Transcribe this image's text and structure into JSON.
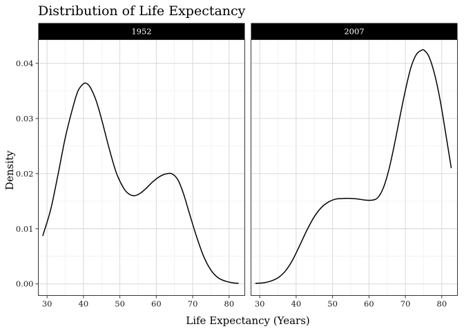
{
  "chart_data": {
    "type": "line",
    "title": "Distribution of Life Expectancy",
    "xlabel": "Life Expectancy (Years)",
    "ylabel": "Density",
    "xlim": [
      27.6,
      84.3
    ],
    "ylim": [
      -0.0021,
      0.0443
    ],
    "x_ticks": [
      30,
      40,
      50,
      60,
      70,
      80
    ],
    "y_ticks": [
      0.0,
      0.01,
      0.02,
      0.03,
      0.04
    ],
    "y_tick_labels": [
      "0.00",
      "0.01",
      "0.02",
      "0.03",
      "0.04"
    ],
    "grid": true,
    "legend": "none",
    "panels": [
      {
        "name": "1952",
        "x": [
          28.8,
          31,
          33,
          35,
          37,
          38.5,
          40,
          41,
          42,
          43.5,
          45,
          47,
          49,
          51,
          52.5,
          54,
          55.5,
          57,
          59,
          61,
          63,
          64.5,
          66,
          67.5,
          69,
          71,
          73,
          75,
          77,
          79,
          81,
          82.6
        ],
        "y": [
          0.0087,
          0.0135,
          0.0198,
          0.0265,
          0.0318,
          0.035,
          0.0363,
          0.0363,
          0.0355,
          0.0332,
          0.0298,
          0.0247,
          0.0202,
          0.0174,
          0.0163,
          0.016,
          0.0164,
          0.0172,
          0.0185,
          0.0195,
          0.02,
          0.0199,
          0.0188,
          0.0163,
          0.013,
          0.0087,
          0.005,
          0.0025,
          0.0011,
          0.0005,
          0.0002,
          0.0001
        ]
      },
      {
        "name": "2007",
        "x": [
          28.8,
          31,
          33,
          35,
          37,
          39,
          41,
          43,
          45,
          47,
          49,
          51,
          53,
          55,
          57,
          59,
          61,
          62.5,
          64,
          65.5,
          67,
          68.5,
          70,
          71.5,
          73,
          74.5,
          75.3,
          76.5,
          78,
          79.5,
          81,
          82.6
        ],
        "y": [
          0.0001,
          0.0002,
          0.0005,
          0.0011,
          0.0023,
          0.0043,
          0.007,
          0.0098,
          0.0122,
          0.0139,
          0.0149,
          0.0154,
          0.0155,
          0.0155,
          0.0154,
          0.0152,
          0.0152,
          0.0157,
          0.0175,
          0.0208,
          0.0253,
          0.0303,
          0.0351,
          0.0392,
          0.0416,
          0.0424,
          0.0423,
          0.0412,
          0.0381,
          0.0335,
          0.0276,
          0.021
        ]
      }
    ]
  }
}
